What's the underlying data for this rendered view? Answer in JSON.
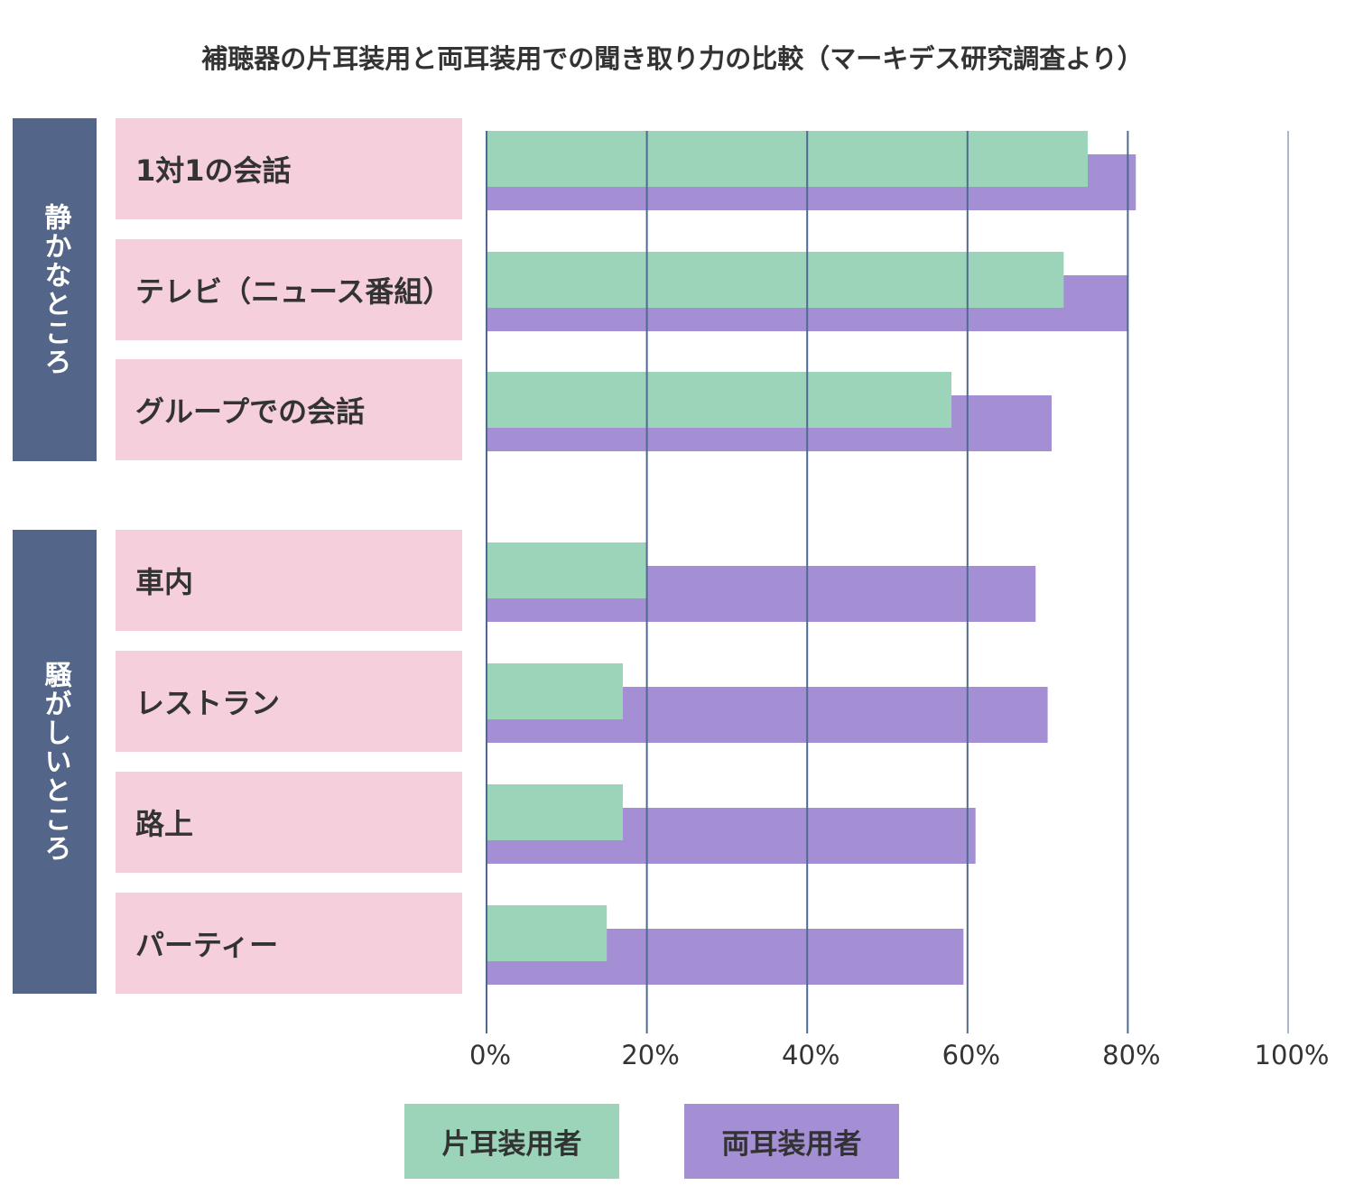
{
  "chart_data": {
    "type": "bar",
    "orientation": "horizontal",
    "title": "補聴器の片耳装用と両耳装用での聞き取り力の比較（マーキデス研究調査より）",
    "groups": [
      {
        "label": "静かなところ",
        "categories": [
          0,
          1,
          2
        ]
      },
      {
        "label": "騒がしいところ",
        "categories": [
          3,
          4,
          5,
          6
        ]
      }
    ],
    "categories": [
      "1対1の会話",
      "テレビ（ニュース番組）",
      "グループでの会話",
      "車内",
      "レストラン",
      "路上",
      "パーティー"
    ],
    "series": [
      {
        "name": "片耳装用者",
        "color": "#9bd4b8",
        "values": [
          75,
          72,
          58,
          20,
          17,
          17,
          15
        ]
      },
      {
        "name": "両耳装用者",
        "color": "#a48fd4",
        "values": [
          81,
          80,
          70.5,
          68.5,
          70,
          61,
          59.5
        ]
      }
    ],
    "xlim": [
      0,
      100
    ],
    "xticks": [
      "0%",
      "20%",
      "40%",
      "60%",
      "80%",
      "100%"
    ],
    "grid": true,
    "legend": "bottom"
  }
}
